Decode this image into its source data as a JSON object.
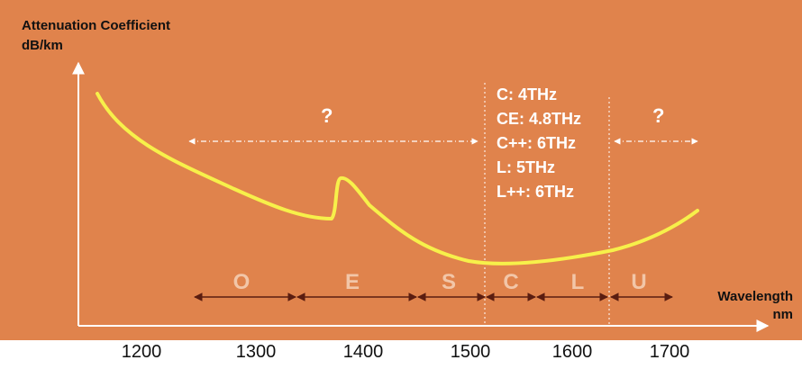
{
  "y_axis": {
    "title_line1": "Attenuation Coefficient",
    "title_line2": "dB/km"
  },
  "x_axis": {
    "title_line1": "Wavelength",
    "title_line2": "nm",
    "ticks": [
      "1200",
      "1300",
      "1400",
      "1500",
      "1600",
      "1700"
    ]
  },
  "bands": [
    {
      "label": "O"
    },
    {
      "label": "E"
    },
    {
      "label": "S"
    },
    {
      "label": "C"
    },
    {
      "label": "L"
    },
    {
      "label": "U"
    }
  ],
  "unknown_left": "?",
  "unknown_right": "?",
  "capacities": [
    "C: 4THz",
    "CE: 4.8THz",
    "C++: 6THz",
    "L: 5THz",
    "L++: 6THz"
  ],
  "colors": {
    "background": "#e0834c",
    "curve": "#f7f04a",
    "axis": "#ffffff",
    "band_arrows": "#5a1d10",
    "band_labels": "#f2c6a8"
  }
}
